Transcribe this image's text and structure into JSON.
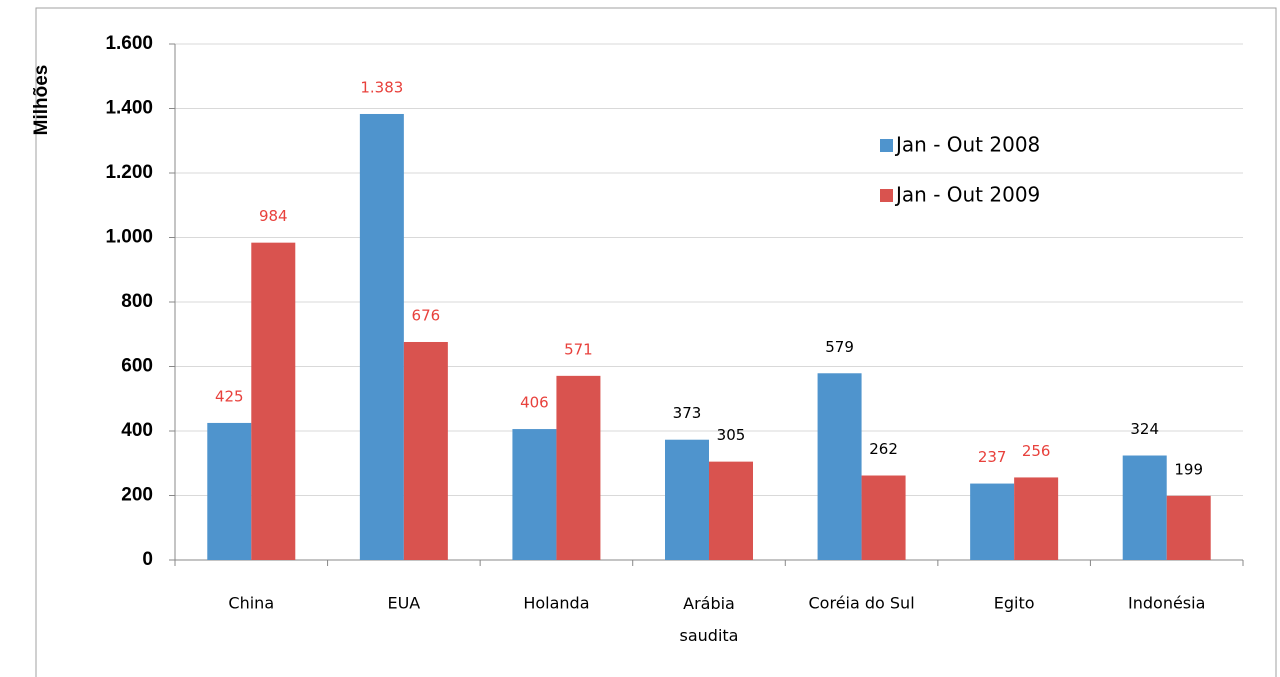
{
  "chart_data": {
    "type": "bar",
    "ylabel": "Milhões",
    "categories": [
      "China",
      "EUA",
      "Holanda",
      "Arábia saudita",
      "Coréia do Sul",
      "Egito",
      "Indonésia"
    ],
    "series": [
      {
        "name": "Jan - Out 2008",
        "color": "#4f94cd",
        "values": [
          425,
          1383,
          406,
          373,
          579,
          237,
          324
        ],
        "value_labels": [
          "425",
          "1.383",
          "406",
          "373",
          "579",
          "237",
          "324"
        ]
      },
      {
        "name": "Jan - Out 2009",
        "color": "#d9534f",
        "values": [
          984,
          676,
          571,
          305,
          262,
          256,
          199
        ],
        "value_labels": [
          "984",
          "676",
          "571",
          "305",
          "262",
          "256",
          "199"
        ]
      }
    ],
    "label_colors": [
      "#e8413c",
      "#e8413c",
      "#e8413c",
      "#000000",
      "#000000",
      "#e8413c",
      "#000000"
    ],
    "ylim": [
      0,
      1600
    ],
    "yticks": [
      0,
      200,
      400,
      600,
      800,
      {
        "value": 1000,
        "label": "1.000"
      },
      {
        "value": 1200,
        "label": "1.200"
      },
      {
        "value": 1400,
        "label": "1.400"
      },
      {
        "value": 1600,
        "label": "1.600"
      }
    ],
    "grid": true,
    "legend": "upper right"
  }
}
